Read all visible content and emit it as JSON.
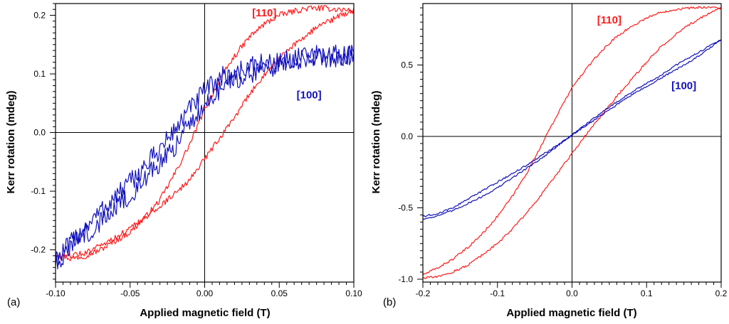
{
  "chart_data": [
    {
      "type": "line",
      "panel_label": "(a)",
      "xlabel": "Applied magnetic field (T)",
      "ylabel": "Kerr rotation (mdeg)",
      "xlim": [
        -0.1,
        0.1
      ],
      "ylim": [
        -0.255,
        0.22
      ],
      "x_ticks": [
        -0.1,
        -0.05,
        0.0,
        0.05,
        0.1
      ],
      "x_tick_labels": [
        "-0.10",
        "-0.05",
        "0.00",
        "0.05",
        "0.10"
      ],
      "y_ticks": [
        -0.2,
        -0.1,
        0.0,
        0.1,
        0.2
      ],
      "y_tick_labels": [
        "-0.2",
        "-0.1",
        "0.0",
        "0.1",
        "0.2"
      ],
      "zero_lines": true,
      "series": [
        {
          "name": "[110]",
          "color": "#ff1a1a",
          "noise": 0.005,
          "label_pos": [
            0.04,
            0.198
          ],
          "x": [
            -0.1,
            -0.09,
            -0.08,
            -0.07,
            -0.06,
            -0.05,
            -0.04,
            -0.03,
            -0.02,
            -0.01,
            0.0,
            0.01,
            0.02,
            0.03,
            0.04,
            0.05,
            0.06,
            0.07,
            0.08,
            0.09,
            0.1,
            0.09,
            0.08,
            0.07,
            0.06,
            0.05,
            0.04,
            0.03,
            0.02,
            0.01,
            0.0,
            -0.01,
            -0.02,
            -0.03,
            -0.04,
            -0.05,
            -0.06,
            -0.07,
            -0.08,
            -0.09,
            -0.1
          ],
          "y": [
            -0.205,
            -0.215,
            -0.21,
            -0.2,
            -0.185,
            -0.17,
            -0.145,
            -0.115,
            -0.07,
            -0.02,
            0.04,
            0.09,
            0.13,
            0.163,
            0.185,
            0.2,
            0.207,
            0.212,
            0.212,
            0.21,
            0.208,
            0.198,
            0.186,
            0.17,
            0.15,
            0.125,
            0.098,
            0.065,
            0.025,
            -0.01,
            -0.045,
            -0.08,
            -0.105,
            -0.125,
            -0.145,
            -0.163,
            -0.18,
            -0.193,
            -0.205,
            -0.21,
            -0.213
          ]
        },
        {
          "name": "[100]",
          "color": "#1111bb",
          "noise": 0.018,
          "label_pos": [
            0.07,
            0.058
          ],
          "x": [
            -0.1,
            -0.09,
            -0.08,
            -0.07,
            -0.06,
            -0.05,
            -0.04,
            -0.03,
            -0.02,
            -0.01,
            0.0,
            0.01,
            0.02,
            0.03,
            0.04,
            0.05,
            0.06,
            0.07,
            0.08,
            0.09,
            0.1,
            0.09,
            0.08,
            0.07,
            0.06,
            0.05,
            0.04,
            0.03,
            0.02,
            0.01,
            0.0,
            -0.01,
            -0.02,
            -0.03,
            -0.04,
            -0.05,
            -0.06,
            -0.07,
            -0.08,
            -0.09,
            -0.1
          ],
          "y": [
            -0.22,
            -0.19,
            -0.16,
            -0.135,
            -0.11,
            -0.085,
            -0.058,
            -0.028,
            0.005,
            0.04,
            0.07,
            0.093,
            0.103,
            0.112,
            0.118,
            0.122,
            0.126,
            0.13,
            0.132,
            0.133,
            0.132,
            0.13,
            0.128,
            0.125,
            0.12,
            0.115,
            0.108,
            0.1,
            0.09,
            0.075,
            0.045,
            0.012,
            -0.022,
            -0.052,
            -0.08,
            -0.105,
            -0.13,
            -0.152,
            -0.175,
            -0.197,
            -0.22
          ]
        }
      ]
    },
    {
      "type": "line",
      "panel_label": "(b)",
      "xlabel": "Applied magnetic field (T)",
      "ylabel": "Kerr rotation (mdeg)",
      "xlim": [
        -0.2,
        0.2
      ],
      "ylim": [
        -1.02,
        0.93
      ],
      "x_ticks": [
        -0.2,
        -0.1,
        0.0,
        0.1,
        0.2
      ],
      "x_tick_labels": [
        "-0.2",
        "-0.1",
        "0.0",
        "0.1",
        "0.2"
      ],
      "y_ticks": [
        -1.0,
        -0.5,
        0.0,
        0.5
      ],
      "y_tick_labels": [
        "-1.0",
        "-0.5",
        "0.0",
        "0.5"
      ],
      "zero_lines": true,
      "series": [
        {
          "name": "[110]",
          "color": "#ff1a1a",
          "noise": 0.008,
          "label_pos": [
            0.05,
            0.79
          ],
          "x": [
            -0.2,
            -0.18,
            -0.16,
            -0.14,
            -0.12,
            -0.1,
            -0.08,
            -0.06,
            -0.04,
            -0.02,
            0.0,
            0.02,
            0.04,
            0.06,
            0.08,
            0.1,
            0.12,
            0.14,
            0.16,
            0.18,
            0.2,
            0.18,
            0.16,
            0.14,
            0.12,
            0.1,
            0.08,
            0.06,
            0.04,
            0.02,
            0.0,
            -0.02,
            -0.04,
            -0.06,
            -0.08,
            -0.1,
            -0.12,
            -0.14,
            -0.16,
            -0.18,
            -0.2
          ],
          "y": [
            -0.97,
            -0.92,
            -0.86,
            -0.78,
            -0.68,
            -0.56,
            -0.42,
            -0.25,
            -0.05,
            0.15,
            0.34,
            0.48,
            0.6,
            0.7,
            0.77,
            0.83,
            0.87,
            0.89,
            0.9,
            0.905,
            0.9,
            0.85,
            0.79,
            0.72,
            0.63,
            0.52,
            0.4,
            0.28,
            0.15,
            0.02,
            -0.12,
            -0.26,
            -0.4,
            -0.53,
            -0.65,
            -0.75,
            -0.83,
            -0.9,
            -0.95,
            -0.98,
            -0.99
          ]
        },
        {
          "name": "[100]",
          "color": "#1111bb",
          "noise": 0.006,
          "label_pos": [
            0.15,
            0.33
          ],
          "x": [
            -0.2,
            -0.18,
            -0.16,
            -0.14,
            -0.12,
            -0.1,
            -0.08,
            -0.06,
            -0.04,
            -0.02,
            0.0,
            0.02,
            0.04,
            0.06,
            0.08,
            0.1,
            0.12,
            0.14,
            0.16,
            0.18,
            0.2,
            0.18,
            0.16,
            0.14,
            0.12,
            0.1,
            0.08,
            0.06,
            0.04,
            0.02,
            0.0,
            -0.02,
            -0.04,
            -0.06,
            -0.08,
            -0.1,
            -0.12,
            -0.14,
            -0.16,
            -0.18,
            -0.2
          ],
          "y": [
            -0.58,
            -0.555,
            -0.52,
            -0.47,
            -0.42,
            -0.36,
            -0.29,
            -0.22,
            -0.15,
            -0.07,
            0.01,
            0.09,
            0.17,
            0.24,
            0.31,
            0.37,
            0.43,
            0.5,
            0.56,
            0.62,
            0.68,
            0.6,
            0.53,
            0.47,
            0.41,
            0.35,
            0.29,
            0.22,
            0.15,
            0.08,
            0.01,
            -0.06,
            -0.13,
            -0.2,
            -0.26,
            -0.32,
            -0.38,
            -0.44,
            -0.5,
            -0.54,
            -0.56
          ]
        }
      ]
    }
  ]
}
